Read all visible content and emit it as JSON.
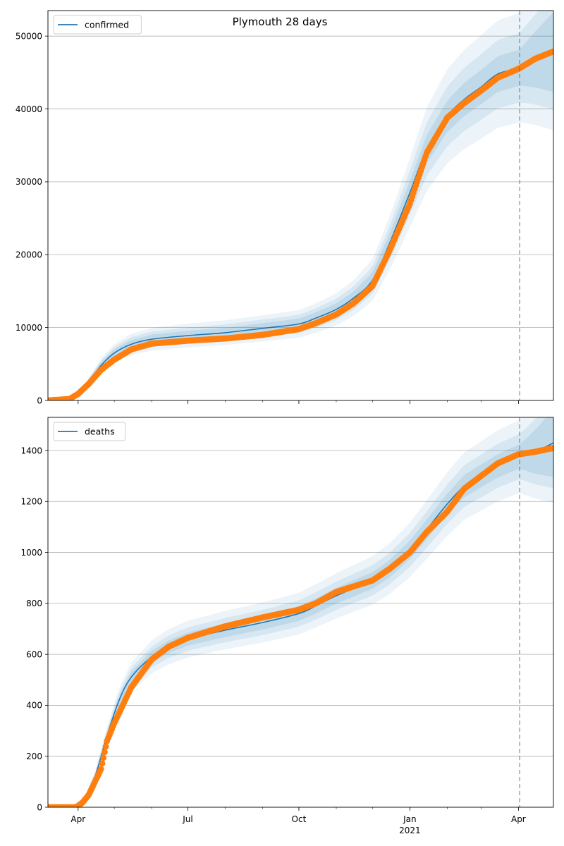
{
  "figure": {
    "title": "Plymouth 28 days"
  },
  "colors": {
    "model_line": "#1f77b4",
    "observed_points": "#ff7f0e",
    "band_fill": "#1f77b4",
    "grid": "#b0b0b0",
    "forecast_divider": "#1f77b4"
  },
  "chart_data": [
    {
      "type": "line",
      "panel": "top",
      "legend": {
        "entries": [
          "confirmed"
        ],
        "placement": "top-left"
      },
      "x_axis": {
        "type": "date",
        "range": [
          "2020-03-07",
          "2021-04-30"
        ],
        "ticks": [
          {
            "date": "2020-04-01",
            "label": "Apr"
          },
          {
            "date": "2020-07-01",
            "label": "Jul"
          },
          {
            "date": "2020-10-01",
            "label": "Oct"
          },
          {
            "date": "2021-01-01",
            "label": "Jan",
            "sublabel": "2021"
          },
          {
            "date": "2021-04-01",
            "label": "Apr"
          }
        ]
      },
      "y_axis": {
        "range": [
          0,
          53500
        ],
        "ticks": [
          0,
          10000,
          20000,
          30000,
          40000,
          50000
        ]
      },
      "grid": "horizontal",
      "forecast_start": "2021-04-02",
      "model": {
        "name": "confirmed",
        "points": [
          [
            "2020-03-07",
            0
          ],
          [
            "2020-03-20",
            100
          ],
          [
            "2020-03-28",
            400
          ],
          [
            "2020-04-05",
            1500
          ],
          [
            "2020-04-12",
            3000
          ],
          [
            "2020-04-20",
            4800
          ],
          [
            "2020-05-01",
            6500
          ],
          [
            "2020-05-15",
            7700
          ],
          [
            "2020-06-01",
            8400
          ],
          [
            "2020-07-01",
            8900
          ],
          [
            "2020-08-01",
            9300
          ],
          [
            "2020-09-01",
            9900
          ],
          [
            "2020-10-01",
            10500
          ],
          [
            "2020-10-15",
            11300
          ],
          [
            "2020-11-01",
            12500
          ],
          [
            "2020-11-15",
            14000
          ],
          [
            "2020-12-01",
            16500
          ],
          [
            "2020-12-15",
            21500
          ],
          [
            "2021-01-01",
            28500
          ],
          [
            "2021-01-15",
            34500
          ],
          [
            "2021-02-01",
            39000
          ],
          [
            "2021-02-15",
            41300
          ],
          [
            "2021-03-01",
            43000
          ],
          [
            "2021-03-15",
            44800
          ],
          [
            "2021-04-01",
            45600
          ],
          [
            "2021-04-15",
            46800
          ],
          [
            "2021-04-30",
            47800
          ]
        ],
        "bands": [
          {
            "rel": 0.05,
            "opacity": 0.12
          },
          {
            "rel": 0.1,
            "opacity": 0.1
          },
          {
            "rel": 0.16,
            "opacity": 0.08
          }
        ]
      },
      "observed": {
        "points": [
          [
            "2020-03-07",
            0
          ],
          [
            "2020-03-25",
            200
          ],
          [
            "2020-04-01",
            900
          ],
          [
            "2020-04-10",
            2300
          ],
          [
            "2020-04-20",
            4200
          ],
          [
            "2020-05-01",
            5600
          ],
          [
            "2020-05-15",
            7000
          ],
          [
            "2020-06-01",
            7800
          ],
          [
            "2020-07-01",
            8200
          ],
          [
            "2020-08-01",
            8500
          ],
          [
            "2020-09-01",
            9000
          ],
          [
            "2020-10-01",
            9800
          ],
          [
            "2020-10-15",
            10600
          ],
          [
            "2020-11-01",
            11800
          ],
          [
            "2020-11-15",
            13300
          ],
          [
            "2020-12-01",
            15700
          ],
          [
            "2020-12-15",
            20500
          ],
          [
            "2021-01-01",
            27000
          ],
          [
            "2021-01-15",
            34000
          ],
          [
            "2021-02-01",
            38800
          ],
          [
            "2021-02-15",
            40800
          ],
          [
            "2021-03-01",
            42500
          ],
          [
            "2021-03-15",
            44300
          ],
          [
            "2021-04-01",
            45500
          ],
          [
            "2021-04-15",
            46900
          ],
          [
            "2021-04-30",
            47900
          ]
        ]
      }
    },
    {
      "type": "line",
      "panel": "bottom",
      "legend": {
        "entries": [
          "deaths"
        ],
        "placement": "top-left"
      },
      "x_axis": {
        "type": "date",
        "range": [
          "2020-03-07",
          "2021-04-30"
        ],
        "ticks": [
          {
            "date": "2020-04-01",
            "label": "Apr"
          },
          {
            "date": "2020-07-01",
            "label": "Jul"
          },
          {
            "date": "2020-10-01",
            "label": "Oct"
          },
          {
            "date": "2021-01-01",
            "label": "Jan",
            "sublabel": "2021"
          },
          {
            "date": "2021-04-01",
            "label": "Apr"
          }
        ]
      },
      "y_axis": {
        "range": [
          0,
          1530
        ],
        "ticks": [
          0,
          200,
          400,
          600,
          800,
          1000,
          1200,
          1400
        ]
      },
      "grid": "horizontal",
      "forecast_start": "2021-04-02",
      "model": {
        "name": "deaths",
        "points": [
          [
            "2020-03-07",
            0
          ],
          [
            "2020-03-29",
            0
          ],
          [
            "2020-04-05",
            20
          ],
          [
            "2020-04-15",
            120
          ],
          [
            "2020-04-25",
            280
          ],
          [
            "2020-05-05",
            420
          ],
          [
            "2020-05-15",
            510
          ],
          [
            "2020-06-01",
            590
          ],
          [
            "2020-06-15",
            630
          ],
          [
            "2020-07-01",
            660
          ],
          [
            "2020-08-01",
            695
          ],
          [
            "2020-09-01",
            725
          ],
          [
            "2020-10-01",
            760
          ],
          [
            "2020-10-15",
            790
          ],
          [
            "2020-11-01",
            830
          ],
          [
            "2020-12-01",
            890
          ],
          [
            "2020-12-15",
            935
          ],
          [
            "2021-01-01",
            1010
          ],
          [
            "2021-01-15",
            1090
          ],
          [
            "2021-02-01",
            1190
          ],
          [
            "2021-02-15",
            1260
          ],
          [
            "2021-03-01",
            1300
          ],
          [
            "2021-03-15",
            1340
          ],
          [
            "2021-04-01",
            1375
          ],
          [
            "2021-04-15",
            1395
          ],
          [
            "2021-04-30",
            1430
          ]
        ],
        "bands": [
          {
            "rel": 0.03,
            "opacity": 0.12
          },
          {
            "rel": 0.06,
            "opacity": 0.1
          },
          {
            "rel": 0.1,
            "opacity": 0.08
          }
        ]
      },
      "observed": {
        "points": [
          [
            "2020-03-07",
            0
          ],
          [
            "2020-03-29",
            0
          ],
          [
            "2020-04-01",
            5
          ],
          [
            "2020-04-05",
            20
          ],
          [
            "2020-04-10",
            50
          ],
          [
            "2020-04-15",
            100
          ],
          [
            "2020-04-20",
            150
          ],
          [
            "2020-04-25",
            260
          ],
          [
            "2020-05-01",
            330
          ],
          [
            "2020-05-15",
            470
          ],
          [
            "2020-06-01",
            580
          ],
          [
            "2020-06-15",
            630
          ],
          [
            "2020-07-01",
            665
          ],
          [
            "2020-08-01",
            710
          ],
          [
            "2020-09-01",
            745
          ],
          [
            "2020-10-01",
            775
          ],
          [
            "2020-10-15",
            800
          ],
          [
            "2020-11-01",
            845
          ],
          [
            "2020-12-01",
            890
          ],
          [
            "2020-12-15",
            935
          ],
          [
            "2021-01-01",
            1000
          ],
          [
            "2021-01-15",
            1080
          ],
          [
            "2021-02-01",
            1160
          ],
          [
            "2021-02-15",
            1250
          ],
          [
            "2021-03-01",
            1300
          ],
          [
            "2021-03-15",
            1350
          ],
          [
            "2021-04-01",
            1385
          ],
          [
            "2021-04-15",
            1395
          ],
          [
            "2021-04-30",
            1410
          ]
        ]
      }
    }
  ]
}
